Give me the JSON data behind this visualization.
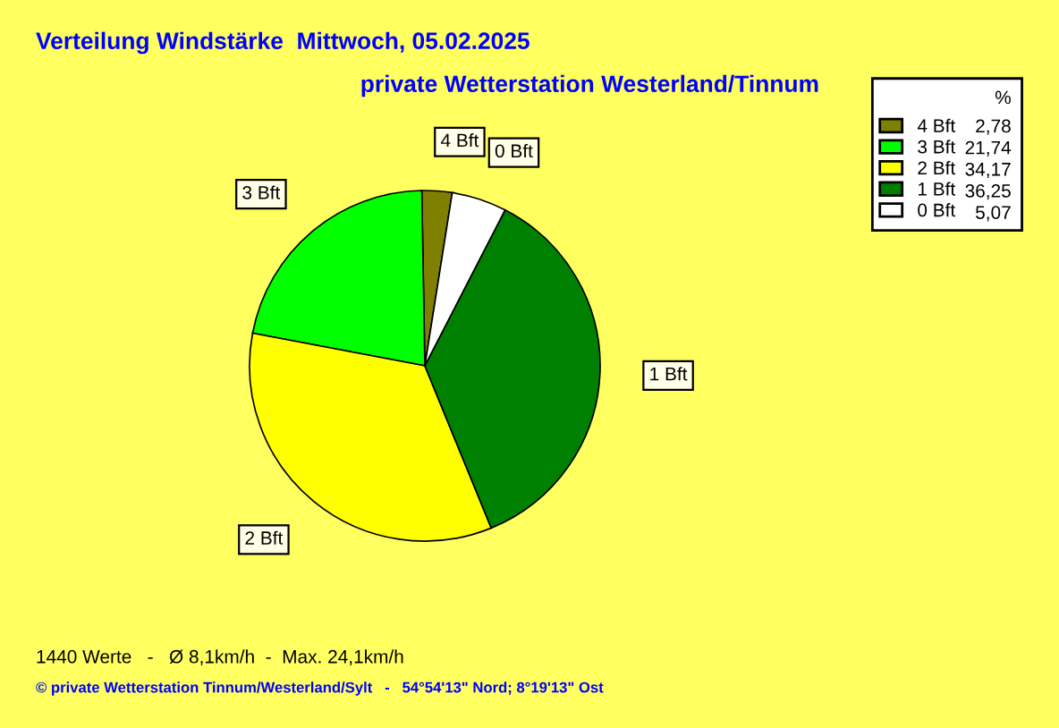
{
  "chart_data": {
    "type": "pie",
    "title": "Verteilung Windstärke  Mittwoch, 05.02.2025",
    "subtitle": "private Wetterstation Westerland/Tinnum",
    "categories": [
      "4 Bft",
      "3 Bft",
      "2 Bft",
      "1 Bft",
      "0 Bft"
    ],
    "values": [
      2.78,
      21.74,
      34.17,
      36.25,
      5.07
    ],
    "value_labels": [
      "2,78",
      "21,74",
      "34,17",
      "36,25",
      "5,07"
    ],
    "colors": [
      "#808000",
      "#00ff00",
      "#ffff00",
      "#008000",
      "#ffffff"
    ],
    "legend": "top right",
    "legend_title": "%",
    "annotations": [
      "1440 Werte   -   Ø 8,1km/h  -  Max. 24,1km/h",
      "© private Wetterstation Tinnum/Westerland/Sylt   -   54°54'13\" Nord; 8°19'13\" Ost"
    ]
  }
}
